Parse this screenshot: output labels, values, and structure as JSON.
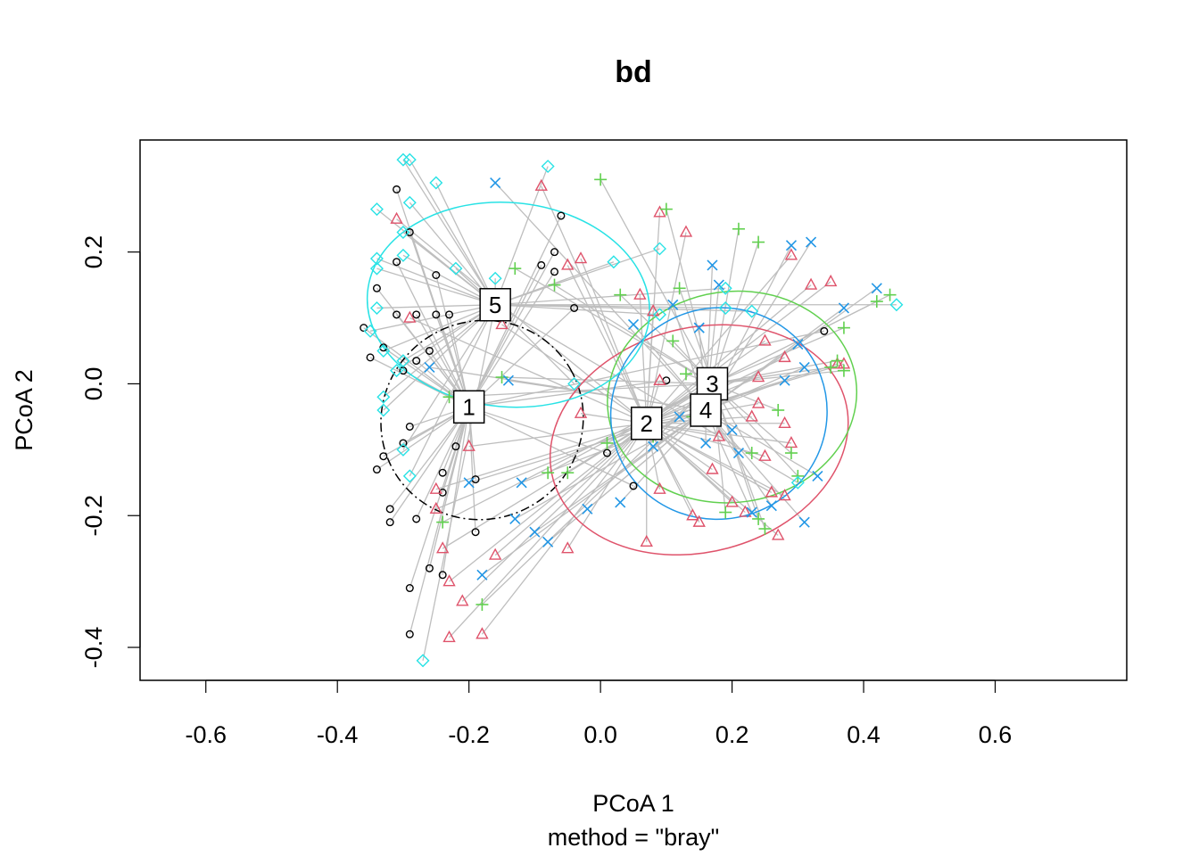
{
  "chart_data": {
    "type": "scatter",
    "title": "bd",
    "xlabel": "PCoA 1",
    "ylabel": "PCoA 2",
    "sub": "method = \"bray\"",
    "xlim": [
      -0.7,
      0.8
    ],
    "ylim": [
      -0.45,
      0.37
    ],
    "x_ticks": [
      -0.6,
      -0.4,
      -0.2,
      0.0,
      0.2,
      0.4,
      0.6
    ],
    "x_tick_labels": [
      "-0.6",
      "-0.4",
      "-0.2",
      "0.0",
      "0.2",
      "0.4",
      "0.6"
    ],
    "y_ticks": [
      -0.4,
      -0.2,
      0.0,
      0.2
    ],
    "y_tick_labels": [
      "-0.4",
      "-0.2",
      "0.0",
      "0.2"
    ],
    "grid": false,
    "spider_color": "#bebebe",
    "groups": [
      {
        "label": "1",
        "color": "#000000",
        "symbol": "circle",
        "ellipse_dash": true,
        "centroid": [
          -0.2,
          -0.035
        ],
        "ellipse": {
          "cx": -0.18,
          "cy": -0.055,
          "rx": 0.155,
          "ry": 0.15,
          "rot": 30
        },
        "points": [
          [
            -0.31,
            0.295
          ],
          [
            -0.29,
            0.23
          ],
          [
            -0.31,
            0.185
          ],
          [
            -0.34,
            0.145
          ],
          [
            -0.36,
            0.085
          ],
          [
            -0.35,
            0.04
          ],
          [
            -0.33,
            0.055
          ],
          [
            -0.31,
            0.105
          ],
          [
            -0.28,
            0.105
          ],
          [
            -0.25,
            0.165
          ],
          [
            -0.25,
            0.105
          ],
          [
            -0.23,
            0.105
          ],
          [
            -0.26,
            0.05
          ],
          [
            -0.28,
            0.035
          ],
          [
            -0.3,
            0.02
          ],
          [
            -0.29,
            -0.065
          ],
          [
            -0.3,
            -0.09
          ],
          [
            -0.33,
            -0.11
          ],
          [
            -0.34,
            -0.13
          ],
          [
            -0.32,
            -0.19
          ],
          [
            -0.32,
            -0.21
          ],
          [
            -0.28,
            -0.205
          ],
          [
            -0.24,
            -0.135
          ],
          [
            -0.24,
            -0.165
          ],
          [
            -0.22,
            -0.095
          ],
          [
            -0.19,
            -0.145
          ],
          [
            -0.19,
            -0.225
          ],
          [
            -0.26,
            -0.28
          ],
          [
            -0.29,
            -0.31
          ],
          [
            -0.24,
            -0.29
          ],
          [
            -0.29,
            -0.38
          ],
          [
            -0.06,
            0.255
          ],
          [
            -0.07,
            0.2
          ],
          [
            -0.09,
            0.18
          ],
          [
            -0.04,
            0.115
          ],
          [
            -0.07,
            0.17
          ],
          [
            0.01,
            -0.105
          ],
          [
            0.05,
            -0.155
          ],
          [
            0.1,
            0.005
          ],
          [
            0.34,
            0.08
          ]
        ]
      },
      {
        "label": "2",
        "color": "#df536b",
        "symbol": "triangle",
        "ellipse_dash": false,
        "centroid": [
          0.07,
          -0.06
        ],
        "ellipse": {
          "cx": 0.15,
          "cy": -0.085,
          "rx": 0.23,
          "ry": 0.17,
          "rot": 15
        },
        "points": [
          [
            -0.31,
            0.25
          ],
          [
            -0.29,
            0.1
          ],
          [
            -0.15,
            0.09
          ],
          [
            -0.09,
            0.3
          ],
          [
            -0.05,
            0.18
          ],
          [
            -0.03,
            0.19
          ],
          [
            0.06,
            0.135
          ],
          [
            0.08,
            0.11
          ],
          [
            0.09,
            0.26
          ],
          [
            0.13,
            0.23
          ],
          [
            -0.2,
            -0.095
          ],
          [
            -0.25,
            -0.16
          ],
          [
            -0.25,
            -0.19
          ],
          [
            -0.24,
            -0.25
          ],
          [
            -0.23,
            -0.3
          ],
          [
            -0.21,
            -0.33
          ],
          [
            -0.23,
            -0.385
          ],
          [
            -0.18,
            -0.38
          ],
          [
            -0.16,
            -0.26
          ],
          [
            -0.05,
            -0.25
          ],
          [
            -0.03,
            -0.045
          ],
          [
            0.09,
            0.005
          ],
          [
            0.09,
            -0.16
          ],
          [
            0.07,
            -0.24
          ],
          [
            0.14,
            -0.2
          ],
          [
            0.15,
            -0.21
          ],
          [
            0.18,
            -0.08
          ],
          [
            0.2,
            -0.18
          ],
          [
            0.22,
            -0.195
          ],
          [
            0.23,
            -0.05
          ],
          [
            0.24,
            0.01
          ],
          [
            0.24,
            -0.03
          ],
          [
            0.25,
            0.065
          ],
          [
            0.27,
            -0.23
          ],
          [
            0.28,
            -0.06
          ],
          [
            0.28,
            0.04
          ],
          [
            0.28,
            -0.17
          ],
          [
            0.29,
            0.195
          ],
          [
            0.29,
            -0.09
          ],
          [
            0.32,
            0.15
          ],
          [
            0.35,
            0.155
          ],
          [
            0.36,
            0.03
          ],
          [
            0.37,
            0.03
          ],
          [
            0.26,
            -0.165
          ],
          [
            0.25,
            -0.11
          ],
          [
            0.17,
            -0.13
          ]
        ]
      },
      {
        "label": "3",
        "color": "#61d04f",
        "symbol": "plus",
        "ellipse_dash": false,
        "centroid": [
          0.17,
          0.0
        ],
        "ellipse": {
          "cx": 0.2,
          "cy": -0.02,
          "rx": 0.19,
          "ry": 0.16,
          "rot": 8
        },
        "points": [
          [
            -0.23,
            -0.02
          ],
          [
            -0.24,
            -0.21
          ],
          [
            -0.18,
            -0.335
          ],
          [
            -0.15,
            0.01
          ],
          [
            -0.13,
            0.175
          ],
          [
            -0.07,
            0.15
          ],
          [
            -0.08,
            -0.135
          ],
          [
            -0.05,
            -0.135
          ],
          [
            0.0,
            0.31
          ],
          [
            0.01,
            -0.09
          ],
          [
            0.03,
            0.135
          ],
          [
            0.1,
            0.265
          ],
          [
            0.11,
            0.065
          ],
          [
            0.12,
            0.145
          ],
          [
            0.13,
            0.015
          ],
          [
            0.14,
            -0.05
          ],
          [
            0.15,
            -0.04
          ],
          [
            0.21,
            0.235
          ],
          [
            0.24,
            0.215
          ],
          [
            0.23,
            -0.105
          ],
          [
            0.19,
            -0.195
          ],
          [
            0.24,
            -0.205
          ],
          [
            0.25,
            -0.22
          ],
          [
            0.27,
            -0.04
          ],
          [
            0.29,
            -0.105
          ],
          [
            0.3,
            -0.14
          ],
          [
            0.35,
            0.025
          ],
          [
            0.36,
            0.035
          ],
          [
            0.37,
            0.085
          ],
          [
            0.37,
            0.02
          ],
          [
            0.42,
            0.125
          ],
          [
            0.44,
            0.135
          ],
          [
            0.08,
            -0.08
          ]
        ]
      },
      {
        "label": "4",
        "color": "#2297e6",
        "symbol": "cross",
        "ellipse_dash": false,
        "centroid": [
          0.16,
          -0.04
        ],
        "ellipse": {
          "cx": 0.18,
          "cy": -0.045,
          "rx": 0.165,
          "ry": 0.16,
          "rot": 20
        },
        "points": [
          [
            -0.16,
            0.305
          ],
          [
            -0.14,
            0.005
          ],
          [
            -0.12,
            -0.15
          ],
          [
            -0.13,
            -0.205
          ],
          [
            -0.1,
            -0.225
          ],
          [
            -0.08,
            -0.24
          ],
          [
            -0.02,
            -0.19
          ],
          [
            -0.2,
            -0.15
          ],
          [
            -0.18,
            -0.29
          ],
          [
            -0.26,
            0.025
          ],
          [
            0.03,
            -0.18
          ],
          [
            0.05,
            0.09
          ],
          [
            0.08,
            -0.095
          ],
          [
            0.11,
            0.12
          ],
          [
            0.15,
            0.085
          ],
          [
            0.17,
            0.18
          ],
          [
            0.18,
            0.15
          ],
          [
            0.16,
            -0.09
          ],
          [
            0.2,
            -0.07
          ],
          [
            0.21,
            -0.105
          ],
          [
            0.23,
            -0.195
          ],
          [
            0.26,
            -0.185
          ],
          [
            0.28,
            0.005
          ],
          [
            0.29,
            0.21
          ],
          [
            0.32,
            0.215
          ],
          [
            0.3,
            0.06
          ],
          [
            0.31,
            -0.21
          ],
          [
            0.31,
            0.025
          ],
          [
            0.33,
            -0.14
          ],
          [
            0.37,
            0.115
          ],
          [
            0.42,
            0.145
          ],
          [
            0.12,
            -0.05
          ]
        ]
      },
      {
        "label": "5",
        "color": "#28e2e5",
        "symbol": "diamond",
        "ellipse_dash": false,
        "centroid": [
          -0.16,
          0.12
        ],
        "ellipse": {
          "cx": -0.14,
          "cy": 0.12,
          "rx": 0.215,
          "ry": 0.155,
          "rot": -5
        },
        "points": [
          [
            -0.3,
            0.34
          ],
          [
            -0.29,
            0.34
          ],
          [
            -0.25,
            0.305
          ],
          [
            -0.29,
            0.275
          ],
          [
            -0.34,
            0.265
          ],
          [
            -0.3,
            0.23
          ],
          [
            -0.34,
            0.19
          ],
          [
            -0.34,
            0.175
          ],
          [
            -0.3,
            0.195
          ],
          [
            -0.22,
            0.175
          ],
          [
            -0.16,
            0.16
          ],
          [
            -0.34,
            0.115
          ],
          [
            -0.35,
            0.08
          ],
          [
            -0.33,
            0.05
          ],
          [
            -0.3,
            0.035
          ],
          [
            -0.31,
            0.02
          ],
          [
            -0.33,
            -0.02
          ],
          [
            -0.33,
            -0.04
          ],
          [
            -0.3,
            -0.1
          ],
          [
            -0.29,
            -0.14
          ],
          [
            -0.08,
            0.33
          ],
          [
            0.09,
            0.205
          ],
          [
            0.02,
            0.185
          ],
          [
            -0.04,
            0.0
          ],
          [
            0.09,
            0.105
          ],
          [
            0.19,
            0.115
          ],
          [
            0.19,
            0.145
          ],
          [
            0.23,
            0.11
          ],
          [
            0.3,
            -0.15
          ],
          [
            0.45,
            0.12
          ],
          [
            -0.27,
            -0.42
          ]
        ]
      }
    ]
  }
}
